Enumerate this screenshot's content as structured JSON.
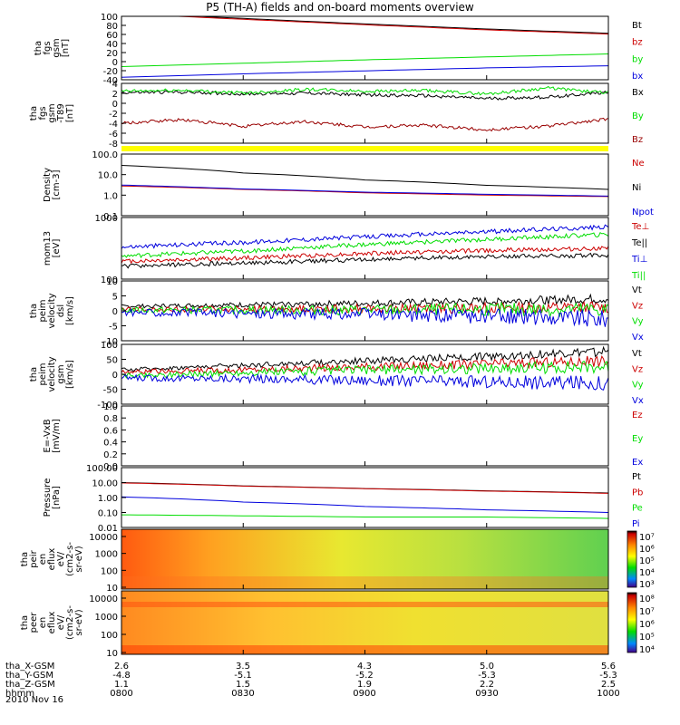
{
  "title": "P5 (TH-A) fields and on-board moments overview",
  "date": "2010 Nov 16",
  "ephemeris": {
    "rows": [
      {
        "label": "tha_X-GSM",
        "values": [
          "2.6",
          "3.5",
          "4.3",
          "5.0",
          "5.6"
        ]
      },
      {
        "label": "tha_Y-GSM",
        "values": [
          "-4.8",
          "-5.1",
          "-5.2",
          "-5.3",
          "-5.3"
        ]
      },
      {
        "label": "tha_Z-GSM",
        "values": [
          "1.1",
          "1.5",
          "1.9",
          "2.2",
          "2.5"
        ]
      },
      {
        "label": "hhmm",
        "values": [
          "0800",
          "0830",
          "0900",
          "0930",
          "1000"
        ]
      }
    ]
  },
  "colors": {
    "black": "#000000",
    "red": "#cc0000",
    "green": "#00dd00",
    "blue": "#0000dd",
    "darkred": "#990000",
    "yellow": "#ffff00"
  },
  "chart_data": [
    {
      "type": "line",
      "ylabel": [
        "tha",
        "fgs",
        "gsm",
        "[nT]"
      ],
      "yticks": [
        "100",
        "80",
        "60",
        "40",
        "20",
        "0",
        "-20",
        "-40"
      ],
      "ylim": [
        -50,
        100
      ],
      "x": [
        0,
        30,
        60,
        90,
        120
      ],
      "series": [
        {
          "name": "Bt",
          "color": "#000000",
          "values": [
            108,
            95,
            82,
            70,
            60
          ]
        },
        {
          "name": "bz",
          "color": "#cc0000",
          "values": [
            106,
            93,
            80,
            68,
            58
          ]
        },
        {
          "name": "by",
          "color": "#00dd00",
          "values": [
            -19,
            -11,
            -3,
            4,
            11
          ]
        },
        {
          "name": "bx",
          "color": "#0000dd",
          "values": [
            -44,
            -36,
            -29,
            -22,
            -17
          ]
        }
      ]
    },
    {
      "type": "line",
      "ylabel": [
        "tha",
        "fgs",
        "gsm",
        "-T89",
        "[nT]"
      ],
      "yticks": [
        "4",
        "2",
        "0",
        "-2",
        "-4",
        "-6",
        "-8"
      ],
      "ylim": [
        -8.5,
        4.5
      ],
      "x": [
        0,
        15,
        30,
        45,
        60,
        75,
        90,
        105,
        120
      ],
      "series": [
        {
          "name": "Bx",
          "color": "#000000",
          "values": [
            2.5,
            2.6,
            2.2,
            2.4,
            2.0,
            1.8,
            1.2,
            1.5,
            2.6
          ]
        },
        {
          "name": "By",
          "color": "#00dd00",
          "values": [
            2.8,
            3.0,
            2.4,
            3.2,
            2.8,
            2.9,
            2.2,
            3.5,
            2.4
          ]
        },
        {
          "name": "Bz",
          "color": "#990000",
          "values": [
            -4.2,
            -3.4,
            -4.8,
            -3.8,
            -5.0,
            -4.6,
            -5.6,
            -4.8,
            -3.2
          ]
        }
      ]
    },
    {
      "type": "line",
      "ylabel": [
        "Density",
        "[cm-3]"
      ],
      "yticks": [
        "100.0",
        "10.0",
        "1.0",
        "0.1"
      ],
      "log": true,
      "ylim": [
        0.1,
        100
      ],
      "x": [
        0,
        30,
        60,
        90,
        120
      ],
      "series": [
        {
          "name": "Ne",
          "color": "#cc0000",
          "values": [
            2.8,
            1.9,
            1.3,
            1.0,
            0.85
          ]
        },
        {
          "name": "Ni",
          "color": "#000000",
          "values": [
            28,
            12,
            5.5,
            3.0,
            1.9
          ]
        },
        {
          "name": "Npot",
          "color": "#0000dd",
          "values": [
            3.1,
            2.0,
            1.4,
            1.1,
            0.9
          ]
        }
      ]
    },
    {
      "type": "line",
      "ylabel": [
        "mom13",
        "[eV]"
      ],
      "yticks": [
        "1000",
        "100"
      ],
      "log": true,
      "ylim": [
        100,
        1300
      ],
      "x": [
        0,
        30,
        60,
        90,
        120
      ],
      "series": [
        {
          "name": "Te⊥",
          "color": "#cc0000",
          "values": [
            210,
            240,
            290,
            330,
            360
          ]
        },
        {
          "name": "Te||",
          "color": "#000000",
          "values": [
            170,
            195,
            225,
            255,
            270
          ]
        },
        {
          "name": "Ti⊥",
          "color": "#0000dd",
          "values": [
            380,
            460,
            580,
            720,
            880
          ]
        },
        {
          "name": "Ti||",
          "color": "#00dd00",
          "values": [
            260,
            320,
            420,
            520,
            640
          ]
        }
      ]
    },
    {
      "type": "line",
      "ylabel": [
        "tha",
        "peim",
        "velocity",
        "dsl",
        "[km/s]"
      ],
      "yticks": [
        "10",
        "5",
        "0",
        "-5",
        "-10"
      ],
      "ylim": [
        -10,
        10
      ],
      "x": [
        0,
        30,
        60,
        90,
        120
      ],
      "series": [
        {
          "name": "Vt",
          "color": "#000000",
          "values": [
            1.5,
            2.0,
            2.5,
            3.2,
            4.0
          ]
        },
        {
          "name": "Vz",
          "color": "#cc0000",
          "values": [
            0.5,
            0.6,
            0.8,
            1.0,
            1.2
          ]
        },
        {
          "name": "Vy",
          "color": "#00dd00",
          "values": [
            0.2,
            0.3,
            0.2,
            0.5,
            0.4
          ]
        },
        {
          "name": "Vx",
          "color": "#0000dd",
          "values": [
            -0.5,
            -0.8,
            -1.2,
            -1.8,
            -2.4
          ]
        }
      ]
    },
    {
      "type": "line",
      "ylabel": [
        "tha",
        "peim",
        "velocity",
        "gsm",
        "[km/s]"
      ],
      "yticks": [
        "100",
        "50",
        "0",
        "-50",
        "-100"
      ],
      "ylim": [
        -100,
        100
      ],
      "x": [
        0,
        30,
        60,
        90,
        120
      ],
      "series": [
        {
          "name": "Vt",
          "color": "#000000",
          "values": [
            15,
            30,
            45,
            60,
            75
          ]
        },
        {
          "name": "Vz",
          "color": "#cc0000",
          "values": [
            8,
            15,
            25,
            35,
            45
          ]
        },
        {
          "name": "Vy",
          "color": "#00dd00",
          "values": [
            -5,
            5,
            15,
            20,
            25
          ]
        },
        {
          "name": "Vx",
          "color": "#0000dd",
          "values": [
            -12,
            -15,
            -20,
            -25,
            -30
          ]
        }
      ]
    },
    {
      "type": "line",
      "ylabel": [
        "E=-VxB",
        "[mV/m]"
      ],
      "yticks": [
        "1.0",
        "0.8",
        "0.6",
        "0.4",
        "0.2",
        "0.0"
      ],
      "ylim": [
        0,
        1
      ],
      "x": [],
      "series": [
        {
          "name": "Ez",
          "color": "#cc0000",
          "values": []
        },
        {
          "name": "Ey",
          "color": "#00dd00",
          "values": []
        },
        {
          "name": "Ex",
          "color": "#0000dd",
          "values": []
        }
      ]
    },
    {
      "type": "line",
      "ylabel": [
        "Pressure",
        "[nPa]"
      ],
      "yticks": [
        "100.00",
        "10.00",
        "1.00",
        "0.10",
        "0.01"
      ],
      "log": true,
      "ylim": [
        0.01,
        100
      ],
      "x": [
        0,
        30,
        60,
        90,
        120
      ],
      "series": [
        {
          "name": "Pt",
          "color": "#000000",
          "values": [
            10,
            6,
            4,
            2.8,
            2
          ]
        },
        {
          "name": "Pb",
          "color": "#cc0000",
          "values": [
            9.5,
            5.8,
            3.9,
            2.7,
            1.9
          ]
        },
        {
          "name": "Pe",
          "color": "#00dd00",
          "values": [
            0.07,
            0.06,
            0.05,
            0.05,
            0.04
          ]
        },
        {
          "name": "Pi",
          "color": "#0000dd",
          "values": [
            1.1,
            0.5,
            0.25,
            0.15,
            0.1
          ]
        }
      ]
    },
    {
      "type": "heatmap",
      "ylabel": [
        "tha",
        "peir",
        "en",
        "eflux",
        "eV/",
        "(cm2-s-",
        "sr-eV)"
      ],
      "yticks": [
        "10000",
        "1000",
        "100",
        "10"
      ],
      "colorbar_ticks": [
        "10⁷",
        "10⁶",
        "10⁵",
        "10⁴",
        "10³"
      ]
    },
    {
      "type": "heatmap",
      "ylabel": [
        "tha",
        "peer",
        "en",
        "eflux",
        "eV/",
        "(cm2-s-",
        "sr-eV)"
      ],
      "yticks": [
        "10000",
        "1000",
        "100",
        "10"
      ],
      "colorbar_ticks": [
        "10⁸",
        "10⁷",
        "10⁶",
        "10⁵",
        "10⁴"
      ]
    }
  ]
}
